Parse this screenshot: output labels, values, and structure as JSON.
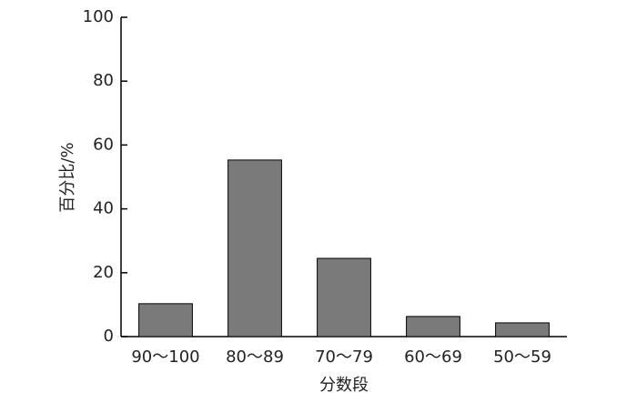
{
  "chart_data": {
    "type": "bar",
    "x_label": "分数段",
    "y_label": "百分比/%",
    "categories": [
      "90～100",
      "80～89",
      "70～79",
      "60～69",
      "50～59"
    ],
    "values": [
      10.3,
      55.3,
      24.5,
      6.3,
      4.3
    ],
    "color": "#7a7a7a",
    "ylim": [
      0,
      100
    ],
    "yticks": [
      0,
      20,
      40,
      60,
      80,
      100
    ],
    "grid": false
  }
}
